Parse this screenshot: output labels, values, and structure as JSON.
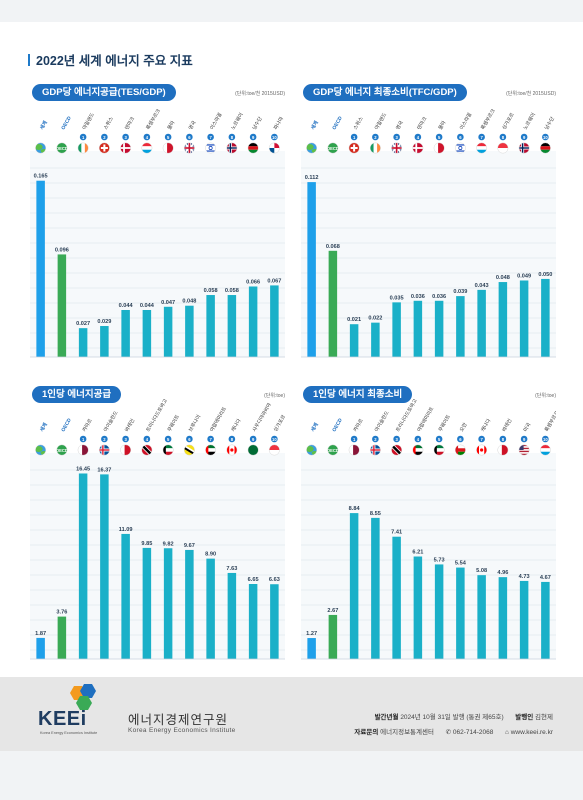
{
  "page_title": "2022년 세계 에너지 주요 지표",
  "colors": {
    "world": "#1ea0ea",
    "oecd": "#3aaa56",
    "country": "#1ab0c8",
    "title_bg": "#1f6fc0",
    "badge": "#1f7ac9"
  },
  "chart_data": [
    {
      "type": "bar",
      "title": "GDP당 에너지공급(TES/GDP)",
      "unit": "(단위:toe/천 2015USD)",
      "categories": [
        "세계",
        "OECD",
        "아일랜드",
        "스위스",
        "덴마크",
        "룩셈부르크",
        "몰타",
        "영국",
        "이스라엘",
        "노르웨이",
        "남수단",
        "파나마"
      ],
      "ranks": [
        "",
        "",
        "1",
        "2",
        "3",
        "4",
        "5",
        "6",
        "7",
        "8",
        "9",
        "10"
      ],
      "flag_icons": [
        "globe-icon",
        "oecd-icon",
        "flag-ireland-icon",
        "flag-switzerland-icon",
        "flag-denmark-icon",
        "flag-luxembourg-icon",
        "flag-malta-icon",
        "flag-uk-icon",
        "flag-israel-icon",
        "flag-norway-icon",
        "flag-south-sudan-icon",
        "flag-panama-icon"
      ],
      "values": [
        0.165,
        0.096,
        0.027,
        0.029,
        0.044,
        0.044,
        0.047,
        0.048,
        0.058,
        0.058,
        0.066,
        0.067
      ],
      "labels": [
        "0.165",
        "0.096",
        "0.027",
        "0.029",
        "0.044",
        "0.044",
        "0.047",
        "0.048",
        "0.058",
        "0.058",
        "0.066",
        "0.067"
      ],
      "ylim": [
        0,
        0.19
      ],
      "grid": true
    },
    {
      "type": "bar",
      "title": "GDP당 에너지 최종소비(TFC/GDP)",
      "unit": "(단위:toe/천 2015USD)",
      "categories": [
        "세계",
        "OECD",
        "스위스",
        "아일랜드",
        "영국",
        "덴마크",
        "몰타",
        "이스라엘",
        "룩셈부르크",
        "싱가포르",
        "노르웨이",
        "남수단"
      ],
      "ranks": [
        "",
        "",
        "1",
        "2",
        "3",
        "4",
        "5",
        "6",
        "7",
        "8",
        "9",
        "10"
      ],
      "flag_icons": [
        "globe-icon",
        "oecd-icon",
        "flag-switzerland-icon",
        "flag-ireland-icon",
        "flag-uk-icon",
        "flag-denmark-icon",
        "flag-malta-icon",
        "flag-israel-icon",
        "flag-luxembourg-icon",
        "flag-singapore-icon",
        "flag-norway-icon",
        "flag-south-sudan-icon"
      ],
      "values": [
        0.112,
        0.068,
        0.021,
        0.022,
        0.035,
        0.036,
        0.036,
        0.039,
        0.043,
        0.048,
        0.049,
        0.05
      ],
      "labels": [
        "0.112",
        "0.068",
        "0.021",
        "0.022",
        "0.035",
        "0.036",
        "0.036",
        "0.039",
        "0.043",
        "0.048",
        "0.049",
        "0.050"
      ],
      "ylim": [
        0,
        0.13
      ],
      "grid": true
    },
    {
      "type": "bar",
      "title": "1인당 에너지공급",
      "unit": "(단위:toe)",
      "categories": [
        "세계",
        "OECD",
        "카타르",
        "아이슬란드",
        "바레인",
        "트리니다드토바고",
        "쿠웨이트",
        "브루나이",
        "아랍에미리트",
        "캐나다",
        "사우디아라비아",
        "싱가포르"
      ],
      "ranks": [
        "",
        "",
        "1",
        "2",
        "3",
        "4",
        "5",
        "6",
        "7",
        "8",
        "9",
        "10"
      ],
      "flag_icons": [
        "globe-icon",
        "oecd-icon",
        "flag-qatar-icon",
        "flag-iceland-icon",
        "flag-bahrain-icon",
        "flag-trinidad-tobago-icon",
        "flag-kuwait-icon",
        "flag-brunei-icon",
        "flag-uae-icon",
        "flag-canada-icon",
        "flag-saudi-arabia-icon",
        "flag-singapore-icon"
      ],
      "values": [
        1.87,
        3.76,
        16.45,
        16.37,
        11.09,
        9.85,
        9.82,
        9.67,
        8.9,
        7.63,
        6.65,
        6.63
      ],
      "labels": [
        "1.87",
        "3.76",
        "16.45",
        "16.37",
        "11.09",
        "9.85",
        "9.82",
        "9.67",
        "8.90",
        "7.63",
        "6.65",
        "6.63"
      ],
      "ylim": [
        0,
        18
      ],
      "grid": true
    },
    {
      "type": "bar",
      "title": "1인당 에너지 최종소비",
      "unit": "(단위:toe)",
      "categories": [
        "세계",
        "OECD",
        "카타르",
        "아이슬란드",
        "트리니다드토바고",
        "아랍에미리트",
        "쿠웨이트",
        "오만",
        "캐나다",
        "바레인",
        "미국",
        "룩셈부르크"
      ],
      "ranks": [
        "",
        "",
        "1",
        "2",
        "3",
        "4",
        "5",
        "6",
        "7",
        "8",
        "9",
        "10"
      ],
      "flag_icons": [
        "globe-icon",
        "oecd-icon",
        "flag-qatar-icon",
        "flag-iceland-icon",
        "flag-trinidad-tobago-icon",
        "flag-uae-icon",
        "flag-kuwait-icon",
        "flag-oman-icon",
        "flag-canada-icon",
        "flag-bahrain-icon",
        "flag-usa-icon",
        "flag-luxembourg-icon"
      ],
      "values": [
        1.27,
        2.67,
        8.84,
        8.55,
        7.41,
        6.21,
        5.73,
        5.54,
        5.08,
        4.96,
        4.73,
        4.67
      ],
      "labels": [
        "1.27",
        "2.67",
        "8.84",
        "8.55",
        "7.41",
        "6.21",
        "5.73",
        "5.54",
        "5.08",
        "4.96",
        "4.73",
        "4.67"
      ],
      "ylim": [
        0,
        12.3
      ],
      "grid": true
    }
  ],
  "footer": {
    "logo_text": "KEEi",
    "logo_sub": "Korea Energy Economics Institute",
    "org_name_ko": "에너지경제연구원",
    "org_name_en": "Korea Energy Economics Institute",
    "pub_date_label": "발간년월",
    "pub_date_value": "2024년 10월 31일 발행 (통권 제65호)",
    "publisher_label": "발행인",
    "publisher_value": "김현제",
    "contact_label": "자료문의",
    "contact_value": "에너지정보통계센터",
    "phone": "062-714-2068",
    "website": "www.keei.re.kr"
  }
}
